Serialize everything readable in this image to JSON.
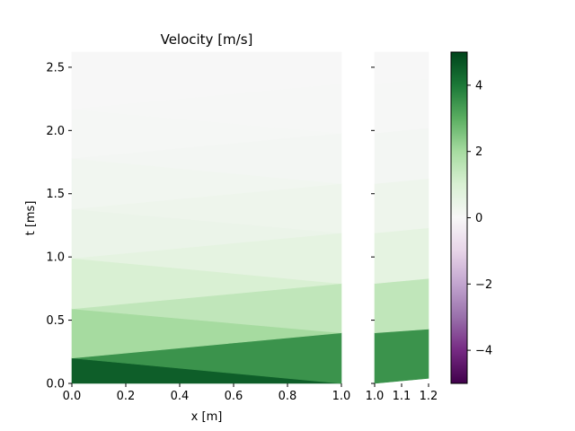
{
  "chart_data": [
    {
      "type": "heatmap",
      "title": "Velocity [m/s]",
      "xlabel": "x [m]",
      "ylabel": "t [ms]",
      "xlim": [
        0.0,
        1.0
      ],
      "ylim": [
        0.0,
        2.62
      ],
      "x_ticks": [
        "0.0",
        "0.2",
        "0.4",
        "0.6",
        "0.8",
        "1.0"
      ],
      "y_ticks": [
        "0.0",
        "0.5",
        "1.0",
        "1.5",
        "2.0",
        "2.5"
      ],
      "x_tick_values": [
        0.0,
        0.2,
        0.4,
        0.6,
        0.8,
        1.0
      ],
      "y_tick_values": [
        0.0,
        0.5,
        1.0,
        1.5,
        2.0,
        2.5
      ],
      "bands": [
        {
          "value": 4.5,
          "t_left": [
            0.0,
            0.2
          ],
          "t_right": [
            0.0,
            0.0
          ]
        },
        {
          "value": 3.5,
          "t_left": [
            0.2,
            0.2
          ],
          "t_right": [
            0.0,
            0.4
          ]
        },
        {
          "value": 2.0,
          "t_left": [
            0.2,
            0.59
          ],
          "t_right": [
            0.4,
            0.4
          ]
        },
        {
          "value": 1.5,
          "t_left": [
            0.59,
            0.59
          ],
          "t_right": [
            0.4,
            0.79
          ]
        },
        {
          "value": 1.0,
          "t_left": [
            0.59,
            0.99
          ],
          "t_right": [
            0.79,
            0.79
          ]
        },
        {
          "value": 0.6,
          "t_left": [
            0.99,
            0.99
          ],
          "t_right": [
            0.79,
            1.19
          ]
        },
        {
          "value": 0.4,
          "t_left": [
            0.99,
            1.38
          ],
          "t_right": [
            1.19,
            1.19
          ]
        },
        {
          "value": 0.3,
          "t_left": [
            1.38,
            1.38
          ],
          "t_right": [
            1.19,
            1.58
          ]
        },
        {
          "value": 0.2,
          "t_left": [
            1.38,
            1.78
          ],
          "t_right": [
            1.58,
            1.58
          ]
        },
        {
          "value": 0.12,
          "t_left": [
            1.78,
            1.78
          ],
          "t_right": [
            1.58,
            1.98
          ]
        },
        {
          "value": 0.06,
          "t_left": [
            1.78,
            2.17
          ],
          "t_right": [
            1.98,
            1.98
          ]
        },
        {
          "value": 0.03,
          "t_left": [
            2.17,
            2.17
          ],
          "t_right": [
            1.98,
            2.37
          ]
        },
        {
          "value": 0.0,
          "t_left": [
            2.17,
            2.62
          ],
          "t_right": [
            2.37,
            2.62
          ]
        }
      ]
    },
    {
      "type": "heatmap",
      "xlim": [
        1.0,
        1.2
      ],
      "ylim": [
        0.0,
        2.62
      ],
      "x_ticks": [
        "1.0",
        "1.1",
        "1.2"
      ],
      "x_tick_values": [
        1.0,
        1.1,
        1.2
      ],
      "bands": [
        {
          "value": 3.5,
          "t_left": [
            0.0,
            0.4
          ],
          "t_right": [
            0.04,
            0.43
          ]
        },
        {
          "value": 1.5,
          "t_left": [
            0.4,
            0.79
          ],
          "t_right": [
            0.43,
            0.83
          ]
        },
        {
          "value": 0.6,
          "t_left": [
            0.79,
            1.19
          ],
          "t_right": [
            0.83,
            1.23
          ]
        },
        {
          "value": 0.3,
          "t_left": [
            1.19,
            1.58
          ],
          "t_right": [
            1.23,
            1.62
          ]
        },
        {
          "value": 0.12,
          "t_left": [
            1.58,
            1.98
          ],
          "t_right": [
            1.62,
            2.02
          ]
        },
        {
          "value": 0.03,
          "t_left": [
            1.98,
            2.37
          ],
          "t_right": [
            2.02,
            2.41
          ]
        },
        {
          "value": 0.0,
          "t_left": [
            2.37,
            2.62
          ],
          "t_right": [
            2.41,
            2.62
          ]
        }
      ]
    },
    {
      "type": "colorbar",
      "colormap": "PRGn",
      "range": [
        -5,
        5
      ],
      "ticks": [
        "−4",
        "−2",
        "0",
        "2",
        "4"
      ],
      "tick_values": [
        -4,
        -2,
        0,
        2,
        4
      ]
    }
  ]
}
